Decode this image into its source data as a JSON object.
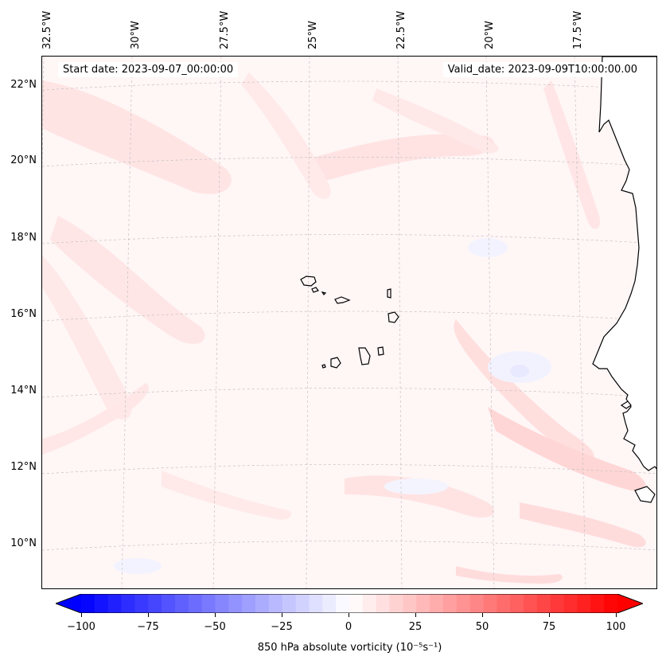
{
  "map": {
    "annotations": {
      "start_date": "Start date: 2023-09-07_00:00:00",
      "valid_date": "Valid_date: 2023-09-09T10:00:00.00"
    },
    "lat_labels": [
      "22°N",
      "20°N",
      "18°N",
      "16°N",
      "14°N",
      "12°N",
      "10°N"
    ],
    "lon_labels": [
      "32.5°W",
      "30°W",
      "27.5°W",
      "25°W",
      "22.5°W",
      "20°W",
      "17.5°W"
    ],
    "features": [
      "Cape Verde islands",
      "West African coastline"
    ]
  },
  "colorbar": {
    "label": "850 hPa absolute vorticity (10⁻⁵s⁻¹)",
    "ticks": [
      "−100",
      "−75",
      "−50",
      "−25",
      "0",
      "25",
      "50",
      "75",
      "100"
    ],
    "min": -100,
    "max": 100,
    "colormap": "bwr",
    "extend": "both"
  },
  "colors": {
    "low": "#0000ff",
    "mid": "#ffffff",
    "high": "#ff0000",
    "coast": "#000000"
  }
}
